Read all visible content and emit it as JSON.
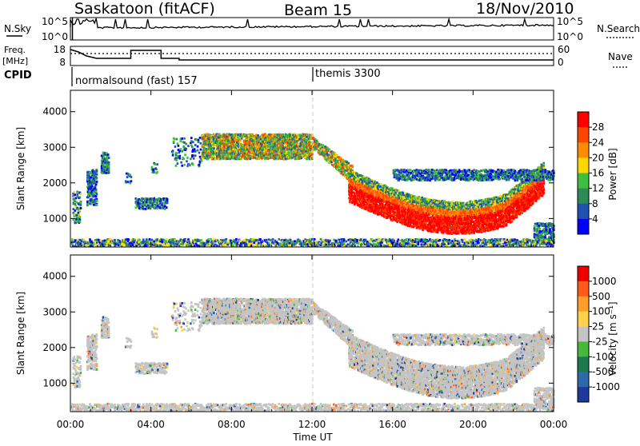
{
  "header": {
    "station": "Saskatoon (fitACF)",
    "beam": "Beam 15",
    "date": "18/Nov/2010"
  },
  "nsky_panel": {
    "left_label": "N.Sky",
    "left_ticks": [
      "10^5",
      "10^0"
    ],
    "right_ticks": [
      "10^5",
      "10^0"
    ],
    "right_label": "N.Search"
  },
  "freq_panel": {
    "left_label_line1": "Freq.",
    "left_label_line2": "[MHz]",
    "left_ticks": [
      "18",
      "8"
    ],
    "right_ticks": [
      "60",
      "0"
    ],
    "right_label": "Nave"
  },
  "cpid_panel": {
    "label": "CPID",
    "segments": [
      {
        "start_hour": 0,
        "text": "normalsound (fast) 157"
      },
      {
        "start_hour": 12,
        "text": "themis 3300"
      }
    ]
  },
  "chart_data": [
    {
      "type": "heatmap",
      "name": "power",
      "xlabel": "Time UT",
      "ylabel": "Slant Range [km]",
      "y_ticks": [
        "1000",
        "2000",
        "3000",
        "4000"
      ],
      "ylim": [
        200,
        4600
      ],
      "x_ticks": [
        "00:00",
        "04:00",
        "08:00",
        "12:00",
        "16:00",
        "20:00",
        "00:00"
      ],
      "xlim_hours": [
        0,
        24
      ],
      "colorbar": {
        "label": "Power [dB]",
        "ticks": [
          "4",
          "8",
          "12",
          "16",
          "20",
          "24",
          "28"
        ],
        "colors": [
          "#0000ff",
          "#2050b0",
          "#2e8b57",
          "#3fbf3f",
          "#ffd700",
          "#ff8c00",
          "#ff4500",
          "#ff0000"
        ]
      }
    },
    {
      "type": "heatmap",
      "name": "velocity",
      "xlabel": "Time UT",
      "ylabel": "Slant Range [km]",
      "y_ticks": [
        "1000",
        "2000",
        "3000",
        "4000"
      ],
      "ylim": [
        200,
        4600
      ],
      "x_ticks": [
        "00:00",
        "04:00",
        "08:00",
        "12:00",
        "16:00",
        "20:00",
        "00:00"
      ],
      "xlim_hours": [
        0,
        24
      ],
      "colorbar": {
        "label": "Velocity [m s⁻¹]",
        "ticks": [
          "1000",
          "500",
          "100",
          "25",
          "-25",
          "-100",
          "-500",
          "-1000"
        ],
        "colors": [
          "#1c3a9c",
          "#2d6aa8",
          "#1e7a4e",
          "#47b83a",
          "#c4c4c4",
          "#ffd24a",
          "#ff9f2a",
          "#ff5a1a",
          "#ee0000"
        ]
      }
    }
  ],
  "xaxis": {
    "label": "Time UT",
    "ticks": [
      "00:00",
      "04:00",
      "08:00",
      "12:00",
      "16:00",
      "20:00",
      "00:00"
    ]
  }
}
